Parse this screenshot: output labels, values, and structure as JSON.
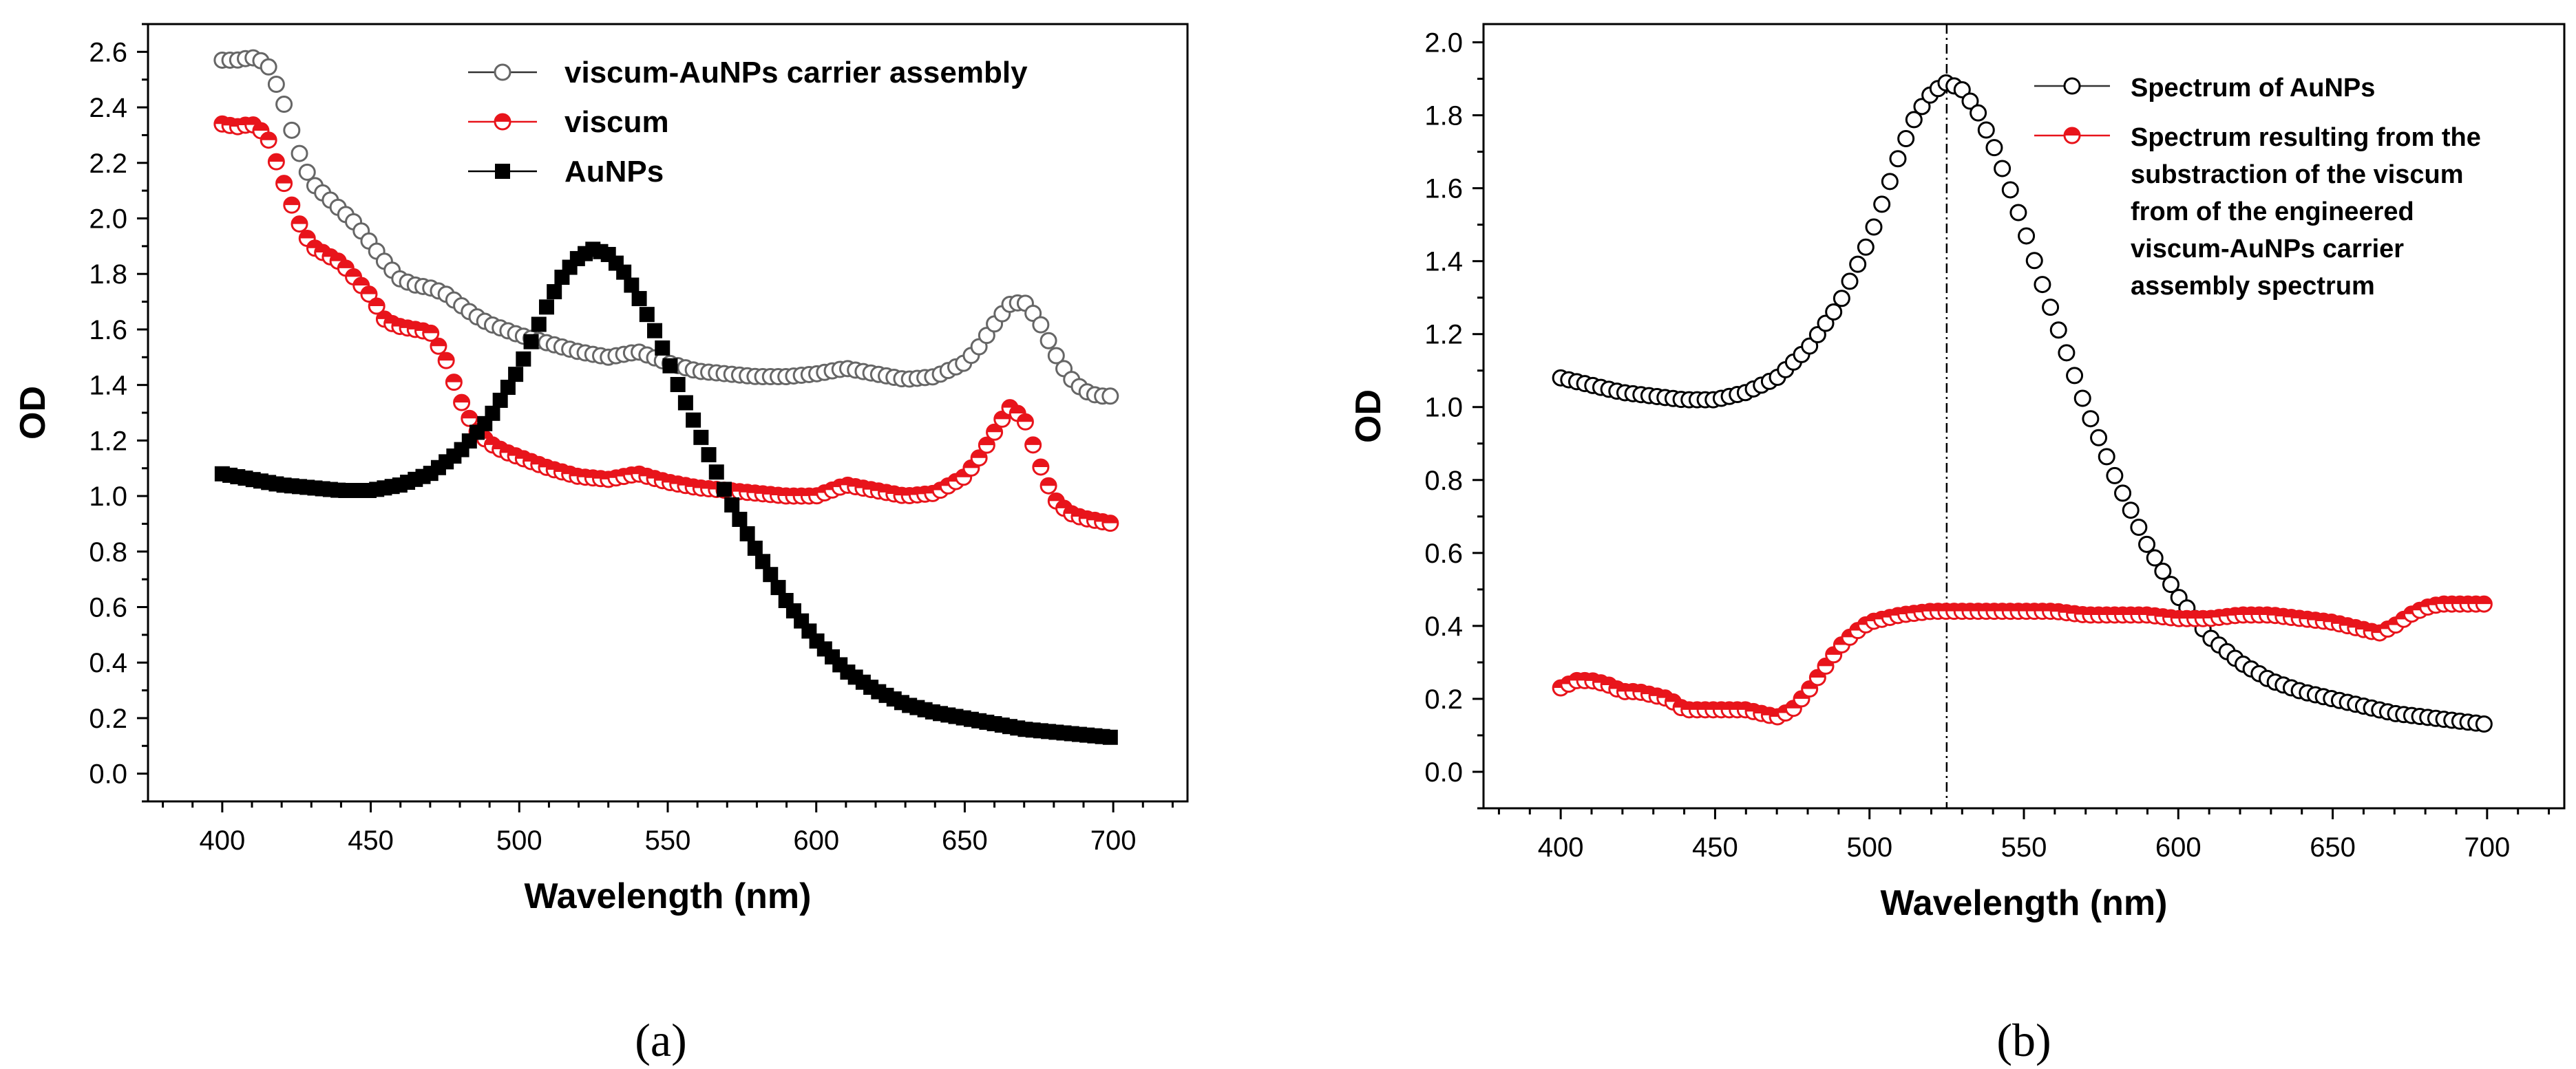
{
  "chart_data": [
    {
      "type": "scatter",
      "panel_label": "(a)",
      "xlabel": "Wavelength (nm)",
      "ylabel": "OD",
      "xlim": [
        375,
        725
      ],
      "ylim": [
        -0.1,
        2.7
      ],
      "xticks": [
        "400",
        "450",
        "500",
        "550",
        "600",
        "650",
        "700"
      ],
      "yticks": [
        "0.0",
        "0.2",
        "0.4",
        "0.6",
        "0.8",
        "1.0",
        "1.2",
        "1.4",
        "1.6",
        "1.8",
        "2.0",
        "2.2",
        "2.4",
        "2.6"
      ],
      "legend_position": "top-right",
      "series": [
        {
          "name": "viscum-AuNPs carrier assembly",
          "marker": "open-circle",
          "color": "#666666",
          "x": [
            400,
            405,
            410,
            415,
            420,
            425,
            430,
            435,
            440,
            445,
            450,
            455,
            460,
            465,
            470,
            475,
            480,
            485,
            490,
            495,
            500,
            510,
            520,
            530,
            540,
            550,
            560,
            570,
            580,
            590,
            600,
            610,
            620,
            630,
            640,
            650,
            655,
            660,
            665,
            670,
            675,
            680,
            685,
            690,
            695,
            700
          ],
          "y": [
            2.57,
            2.57,
            2.58,
            2.56,
            2.44,
            2.26,
            2.13,
            2.08,
            2.03,
            1.98,
            1.91,
            1.84,
            1.78,
            1.76,
            1.75,
            1.73,
            1.69,
            1.65,
            1.62,
            1.6,
            1.58,
            1.55,
            1.52,
            1.5,
            1.52,
            1.48,
            1.45,
            1.44,
            1.43,
            1.43,
            1.44,
            1.46,
            1.44,
            1.42,
            1.43,
            1.48,
            1.54,
            1.62,
            1.69,
            1.7,
            1.63,
            1.52,
            1.43,
            1.38,
            1.36,
            1.36
          ]
        },
        {
          "name": "viscum",
          "marker": "half-filled-circle",
          "color": "#e8141b",
          "x": [
            400,
            405,
            410,
            415,
            420,
            425,
            430,
            435,
            440,
            445,
            450,
            455,
            460,
            465,
            470,
            475,
            480,
            485,
            490,
            495,
            500,
            510,
            520,
            530,
            540,
            550,
            560,
            570,
            580,
            590,
            600,
            610,
            620,
            630,
            640,
            650,
            655,
            660,
            665,
            670,
            675,
            680,
            685,
            690,
            695,
            700
          ],
          "y": [
            2.34,
            2.33,
            2.34,
            2.3,
            2.15,
            2.0,
            1.9,
            1.87,
            1.84,
            1.78,
            1.72,
            1.63,
            1.61,
            1.6,
            1.59,
            1.5,
            1.35,
            1.24,
            1.19,
            1.16,
            1.14,
            1.1,
            1.07,
            1.06,
            1.08,
            1.05,
            1.03,
            1.02,
            1.01,
            1.0,
            1.0,
            1.04,
            1.02,
            1.0,
            1.01,
            1.07,
            1.14,
            1.23,
            1.32,
            1.28,
            1.12,
            0.99,
            0.94,
            0.92,
            0.91,
            0.9
          ]
        },
        {
          "name": "AuNPs",
          "marker": "filled-square",
          "color": "#000000",
          "x": [
            400,
            410,
            420,
            430,
            440,
            450,
            460,
            470,
            480,
            490,
            500,
            505,
            510,
            515,
            520,
            525,
            530,
            535,
            540,
            545,
            550,
            555,
            560,
            570,
            580,
            590,
            600,
            610,
            620,
            630,
            640,
            650,
            660,
            670,
            680,
            690,
            700
          ],
          "y": [
            1.08,
            1.06,
            1.04,
            1.03,
            1.02,
            1.02,
            1.04,
            1.08,
            1.16,
            1.28,
            1.46,
            1.58,
            1.7,
            1.8,
            1.86,
            1.89,
            1.87,
            1.81,
            1.72,
            1.61,
            1.49,
            1.36,
            1.24,
            1.0,
            0.8,
            0.62,
            0.48,
            0.37,
            0.3,
            0.25,
            0.22,
            0.2,
            0.18,
            0.16,
            0.15,
            0.14,
            0.13
          ]
        }
      ]
    },
    {
      "type": "scatter",
      "panel_label": "(b)",
      "xlabel": "Wavelength (nm)",
      "ylabel": "OD",
      "xlim": [
        375,
        725
      ],
      "ylim": [
        -0.1,
        2.05
      ],
      "xticks": [
        "400",
        "450",
        "500",
        "550",
        "600",
        "650",
        "700"
      ],
      "yticks": [
        "0.0",
        "0.2",
        "0.4",
        "0.6",
        "0.8",
        "1.0",
        "1.2",
        "1.4",
        "1.6",
        "1.8",
        "2.0"
      ],
      "reference_line_x": 525,
      "legend_position": "top-right",
      "series": [
        {
          "name": "Spectrum of AuNPs",
          "marker": "open-circle",
          "color": "#000000",
          "x": [
            400,
            410,
            420,
            430,
            440,
            450,
            460,
            470,
            480,
            490,
            500,
            505,
            510,
            515,
            520,
            525,
            530,
            535,
            540,
            545,
            550,
            555,
            560,
            570,
            580,
            590,
            600,
            610,
            620,
            630,
            640,
            650,
            660,
            670,
            680,
            690,
            700
          ],
          "y": [
            1.08,
            1.06,
            1.04,
            1.03,
            1.02,
            1.02,
            1.04,
            1.08,
            1.16,
            1.28,
            1.46,
            1.58,
            1.7,
            1.8,
            1.86,
            1.89,
            1.87,
            1.81,
            1.72,
            1.61,
            1.49,
            1.36,
            1.24,
            1.0,
            0.8,
            0.62,
            0.48,
            0.37,
            0.3,
            0.25,
            0.22,
            0.2,
            0.18,
            0.16,
            0.15,
            0.14,
            0.13
          ]
        },
        {
          "name": "Spectrum resulting from the substraction of  the viscum from of the engineered viscum-AuNPs carrier assembly spectrum",
          "legend_lines": [
            "Spectrum resulting from the",
            "substraction of  the viscum",
            "from of the engineered",
            "viscum-AuNPs carrier",
            "assembly spectrum"
          ],
          "marker": "half-filled-circle",
          "color": "#e8141b",
          "x": [
            400,
            405,
            410,
            415,
            420,
            425,
            430,
            435,
            440,
            445,
            450,
            455,
            460,
            465,
            470,
            475,
            480,
            485,
            490,
            495,
            500,
            510,
            520,
            530,
            540,
            550,
            560,
            570,
            580,
            590,
            600,
            610,
            620,
            630,
            640,
            650,
            655,
            660,
            665,
            670,
            675,
            680,
            685,
            690,
            695,
            700
          ],
          "y": [
            0.23,
            0.25,
            0.25,
            0.24,
            0.22,
            0.22,
            0.21,
            0.2,
            0.17,
            0.17,
            0.17,
            0.17,
            0.17,
            0.16,
            0.15,
            0.17,
            0.22,
            0.28,
            0.34,
            0.38,
            0.41,
            0.43,
            0.44,
            0.44,
            0.44,
            0.44,
            0.44,
            0.43,
            0.43,
            0.43,
            0.42,
            0.42,
            0.43,
            0.43,
            0.42,
            0.41,
            0.4,
            0.39,
            0.38,
            0.4,
            0.43,
            0.45,
            0.46,
            0.46,
            0.46,
            0.46
          ]
        }
      ]
    }
  ]
}
